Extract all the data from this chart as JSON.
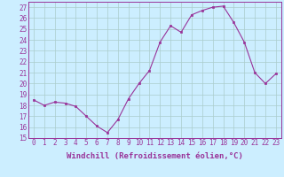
{
  "x": [
    0,
    1,
    2,
    3,
    4,
    5,
    6,
    7,
    8,
    9,
    10,
    11,
    12,
    13,
    14,
    15,
    16,
    17,
    18,
    19,
    20,
    21,
    22,
    23
  ],
  "y": [
    18.5,
    18.0,
    18.3,
    18.2,
    17.9,
    17.0,
    16.1,
    15.5,
    16.7,
    18.6,
    20.0,
    21.2,
    23.8,
    25.3,
    24.7,
    26.3,
    26.7,
    27.0,
    27.1,
    25.6,
    23.8,
    21.0,
    20.0,
    20.9
  ],
  "line_color": "#993399",
  "marker": "s",
  "marker_size": 2,
  "bg_color": "#cceeff",
  "grid_color": "#aacccc",
  "xlabel": "Windchill (Refroidissement éolien,°C)",
  "xlabel_fontsize": 6.5,
  "tick_fontsize": 5.5,
  "ylim": [
    15,
    27.5
  ],
  "xlim": [
    -0.5,
    23.5
  ],
  "yticks": [
    15,
    16,
    17,
    18,
    19,
    20,
    21,
    22,
    23,
    24,
    25,
    26,
    27
  ],
  "xticks": [
    0,
    1,
    2,
    3,
    4,
    5,
    6,
    7,
    8,
    9,
    10,
    11,
    12,
    13,
    14,
    15,
    16,
    17,
    18,
    19,
    20,
    21,
    22,
    23
  ]
}
